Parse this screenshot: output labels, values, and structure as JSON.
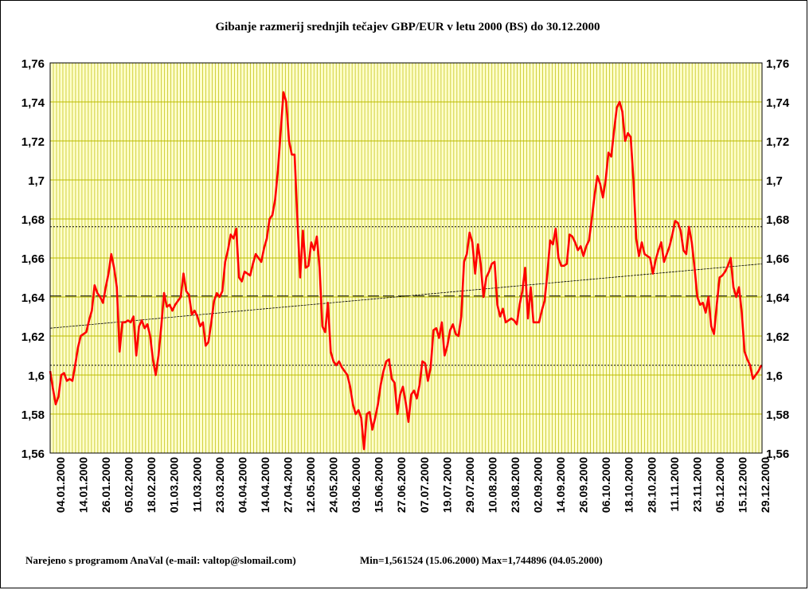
{
  "chart_data": {
    "type": "line",
    "title": "Gibanje razmerij srednjih tečajev GBP/EUR v letu 2000 (BS) do 30.12.2000",
    "footer": {
      "credit": "Narejeno s programom AnaVal (e-mail: valtop@slomail.com)",
      "stats": "Min=1,561524 (15.06.2000) Max=1,744896 (04.05.2000)"
    },
    "ylim": [
      1.56,
      1.76
    ],
    "y_ticks": [
      "1,56",
      "1,58",
      "1,6",
      "1,62",
      "1,64",
      "1,66",
      "1,68",
      "1,7",
      "1,72",
      "1,74",
      "1,76"
    ],
    "x_ticks": [
      "04.01.2000",
      "14.01.2000",
      "26.01.2000",
      "05.02.2000",
      "18.02.2000",
      "01.03.2000",
      "11.03.2000",
      "23.03.2000",
      "04.04.2000",
      "14.04.2000",
      "27.04.2000",
      "12.05.2000",
      "24.05.2000",
      "03.06.2000",
      "15.06.2000",
      "27.06.2000",
      "07.07.2000",
      "19.07.2000",
      "29.07.2000",
      "10.08.2000",
      "23.08.2000",
      "02.09.2000",
      "14.09.2000",
      "26.09.2000",
      "06.10.2000",
      "18.10.2000",
      "28.10.2000",
      "11.11.2000",
      "23.11.2000",
      "05.12.2000",
      "15.12.2000",
      "29.12.2000"
    ],
    "grid": true,
    "reference_lines": {
      "mean": 1.6405,
      "upper": 1.676,
      "lower": 1.605,
      "trend": [
        1.624,
        1.657
      ]
    },
    "colors": {
      "plot_background": "#ffffcc",
      "grid": "#bbbb00",
      "series": "#ff0000",
      "reference": "#000000"
    },
    "series": [
      {
        "values": [
          1.602,
          1.593,
          1.585,
          1.589,
          1.6,
          1.601,
          1.597,
          1.598,
          1.597,
          1.605,
          1.614,
          1.62,
          1.621,
          1.622,
          1.628,
          1.633,
          1.646,
          1.642,
          1.64,
          1.637,
          1.645,
          1.652,
          1.662,
          1.655,
          1.645,
          1.612,
          1.627,
          1.627,
          1.628,
          1.627,
          1.63,
          1.61,
          1.625,
          1.628,
          1.624,
          1.626,
          1.62,
          1.608,
          1.6,
          1.61,
          1.625,
          1.642,
          1.635,
          1.636,
          1.633,
          1.636,
          1.638,
          1.64,
          1.652,
          1.643,
          1.641,
          1.631,
          1.633,
          1.63,
          1.625,
          1.627,
          1.615,
          1.617,
          1.627,
          1.638,
          1.642,
          1.64,
          1.643,
          1.658,
          1.664,
          1.672,
          1.67,
          1.675,
          1.65,
          1.648,
          1.653,
          1.652,
          1.651,
          1.657,
          1.662,
          1.66,
          1.658,
          1.665,
          1.67,
          1.68,
          1.682,
          1.69,
          1.705,
          1.725,
          1.745,
          1.74,
          1.72,
          1.713,
          1.713,
          1.68,
          1.65,
          1.674,
          1.655,
          1.656,
          1.668,
          1.664,
          1.671,
          1.655,
          1.625,
          1.622,
          1.637,
          1.612,
          1.607,
          1.605,
          1.607,
          1.604,
          1.602,
          1.6,
          1.594,
          1.585,
          1.58,
          1.582,
          1.578,
          1.562,
          1.58,
          1.581,
          1.572,
          1.578,
          1.585,
          1.595,
          1.602,
          1.607,
          1.608,
          1.598,
          1.596,
          1.58,
          1.59,
          1.594,
          1.586,
          1.576,
          1.59,
          1.592,
          1.588,
          1.595,
          1.607,
          1.606,
          1.597,
          1.604,
          1.623,
          1.624,
          1.619,
          1.627,
          1.61,
          1.615,
          1.623,
          1.626,
          1.621,
          1.62,
          1.63,
          1.658,
          1.662,
          1.673,
          1.668,
          1.652,
          1.667,
          1.657,
          1.64,
          1.65,
          1.653,
          1.657,
          1.658,
          1.636,
          1.63,
          1.634,
          1.627,
          1.628,
          1.629,
          1.628,
          1.626,
          1.636,
          1.643,
          1.655,
          1.629,
          1.645,
          1.627,
          1.627,
          1.627,
          1.633,
          1.638,
          1.652,
          1.669,
          1.667,
          1.675,
          1.66,
          1.656,
          1.656,
          1.657,
          1.672,
          1.671,
          1.668,
          1.664,
          1.666,
          1.661,
          1.666,
          1.669,
          1.68,
          1.692,
          1.702,
          1.698,
          1.691,
          1.7,
          1.714,
          1.712,
          1.725,
          1.737,
          1.74,
          1.735,
          1.72,
          1.724,
          1.722,
          1.7,
          1.67,
          1.661,
          1.668,
          1.662,
          1.661,
          1.66,
          1.652,
          1.659,
          1.664,
          1.668,
          1.658,
          1.662,
          1.666,
          1.672,
          1.679,
          1.678,
          1.674,
          1.664,
          1.662,
          1.676,
          1.668,
          1.655,
          1.64,
          1.636,
          1.637,
          1.632,
          1.64,
          1.625,
          1.621,
          1.636,
          1.65,
          1.651,
          1.653,
          1.656,
          1.66,
          1.645,
          1.64,
          1.645,
          1.632,
          1.612,
          1.608,
          1.605,
          1.598,
          1.6,
          1.602,
          1.605
        ]
      }
    ]
  }
}
